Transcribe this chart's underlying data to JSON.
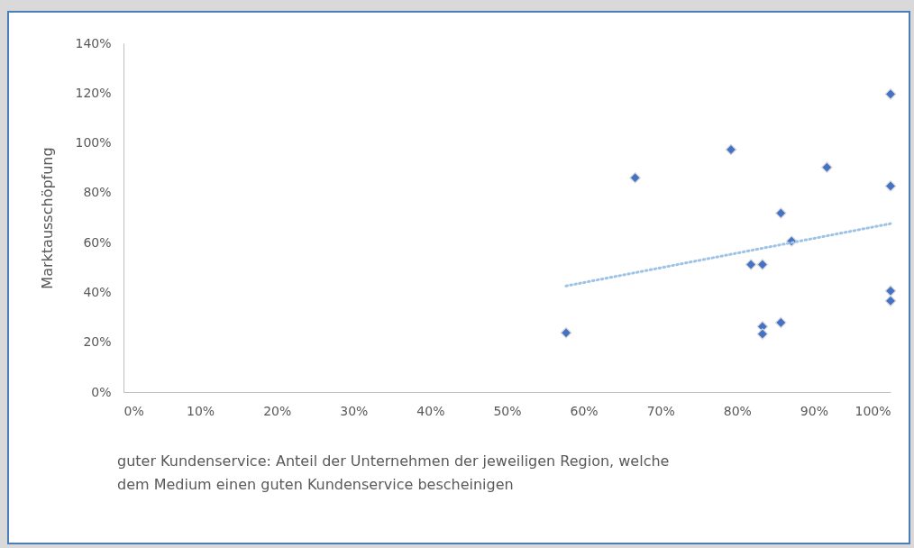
{
  "chart_data": {
    "type": "scatter",
    "xlabel": "guter Kundenservice: Anteil der Unternehmen der jeweiligen Region, welche dem Medium einen guten Kundenservice bescheinigen",
    "ylabel": "Marktausschöpfung",
    "xlim": [
      0,
      100
    ],
    "xticks": [
      {
        "value": 0,
        "label": "0%"
      },
      {
        "value": 10,
        "label": "10%"
      },
      {
        "value": 20,
        "label": "20%"
      },
      {
        "value": 30,
        "label": "30%"
      },
      {
        "value": 40,
        "label": "40%"
      },
      {
        "value": 50,
        "label": "50%"
      },
      {
        "value": 60,
        "label": "60%"
      },
      {
        "value": 70,
        "label": "70%"
      },
      {
        "value": 80,
        "label": "80%"
      },
      {
        "value": 90,
        "label": "90%"
      },
      {
        "value": 100,
        "label": "100%"
      }
    ],
    "ylim": [
      0,
      140
    ],
    "yticks": [
      {
        "value": 0,
        "label": "0%"
      },
      {
        "value": 20,
        "label": "20%"
      },
      {
        "value": 40,
        "label": "40%"
      },
      {
        "value": 60,
        "label": "60%"
      },
      {
        "value": 80,
        "label": "80%"
      },
      {
        "value": 100,
        "label": "100%"
      },
      {
        "value": 120,
        "label": "120%"
      },
      {
        "value": 140,
        "label": "140%"
      }
    ],
    "grid": false,
    "series": [
      {
        "color": "#4472c4",
        "marker": "diamond",
        "x": [
          57.7,
          66.7,
          79.2,
          91.7,
          100,
          100,
          85.7,
          87.1,
          81.8,
          83.3,
          100,
          100,
          83.3,
          83.3,
          85.7
        ],
        "values": [
          23.8,
          86,
          97.3,
          90.2,
          119.6,
          82.7,
          71.8,
          60.6,
          51.2,
          51.2,
          40.6,
          36.6,
          26.3,
          23.3,
          27.9
        ]
      },
      {
        "type": "line",
        "color": "#9dc3e6",
        "line_style": "dotted",
        "marker": "none",
        "x": [
          57.7,
          100
        ],
        "values": [
          42.6,
          67.6
        ]
      }
    ]
  }
}
